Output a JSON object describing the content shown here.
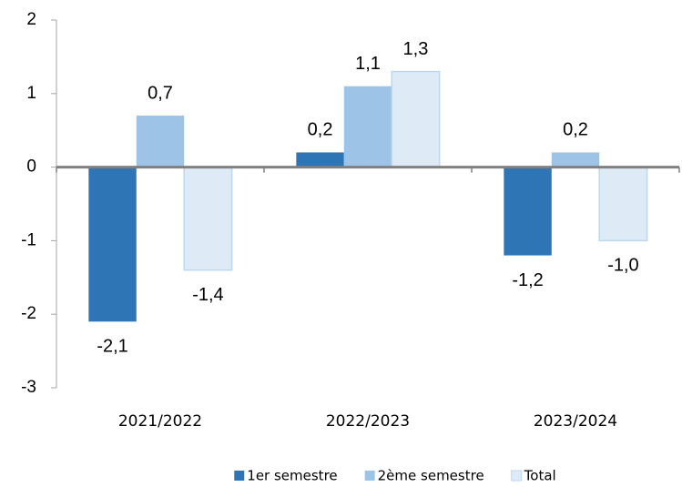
{
  "chart_data": {
    "type": "bar",
    "categories": [
      "2021/2022",
      "2022/2023",
      "2023/2024"
    ],
    "series": [
      {
        "name": "1er semestre",
        "color": "#2e75b6",
        "values": [
          -2.1,
          0.2,
          -1.2
        ],
        "value_labels": [
          "-2,1",
          "0,2",
          "-1,2"
        ]
      },
      {
        "name": "2ème semestre",
        "color": "#9dc3e6",
        "values": [
          0.7,
          1.1,
          0.2
        ],
        "value_labels": [
          "0,7",
          "1,1",
          "0,2"
        ]
      },
      {
        "name": "Total",
        "color": "#deebf7",
        "edgecolor": "#bdd7ee",
        "values": [
          -1.4,
          1.3,
          -1.0
        ],
        "value_labels": [
          "-1,4",
          "1,3",
          "-1,0"
        ]
      }
    ],
    "ylim": [
      -3,
      2
    ],
    "yticks": [
      -3,
      -2,
      -1,
      0,
      1,
      2
    ],
    "grid": false,
    "legend": "bottom"
  }
}
